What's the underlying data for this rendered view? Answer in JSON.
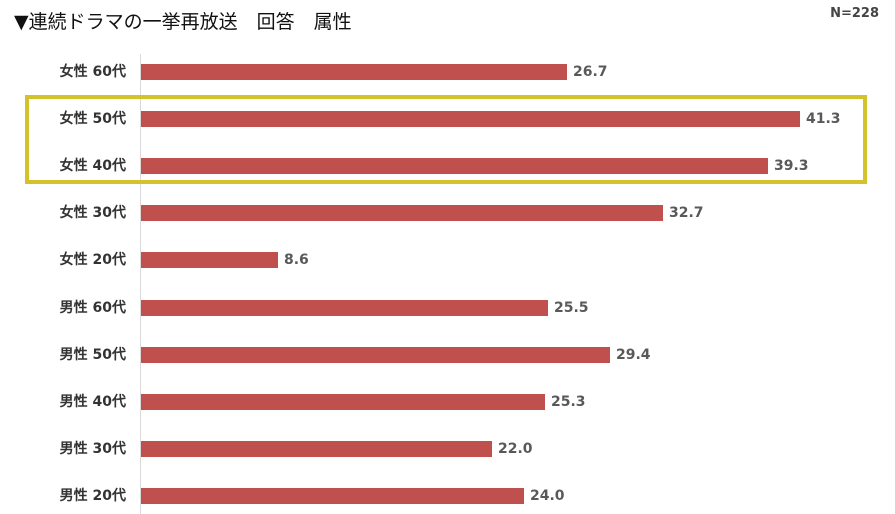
{
  "title": "▼連続ドラマの一挙再放送　回答　属性",
  "sample_size": "N=228",
  "colors": {
    "bar": "#c0504d",
    "highlight": "#d4c22a"
  },
  "chart_data": {
    "type": "bar",
    "orientation": "horizontal",
    "title": "▼連続ドラマの一挙再放送　回答　属性",
    "categories": [
      "女性 60代",
      "女性 50代",
      "女性 40代",
      "女性 30代",
      "女性 20代",
      "男性 60代",
      "男性 50代",
      "男性 40代",
      "男性 30代",
      "男性 20代"
    ],
    "values": [
      26.7,
      41.3,
      39.3,
      32.7,
      8.6,
      25.5,
      29.4,
      25.3,
      22.0,
      24.0
    ],
    "value_labels": [
      "26.7",
      "41.3",
      "39.3",
      "32.7",
      "8.6",
      "25.5",
      "29.4",
      "25.3",
      "22.0",
      "24.0"
    ],
    "xlim": [
      0,
      41.3
    ],
    "highlighted_categories": [
      "女性 50代",
      "女性 40代"
    ],
    "grid": false,
    "legend": "none"
  }
}
